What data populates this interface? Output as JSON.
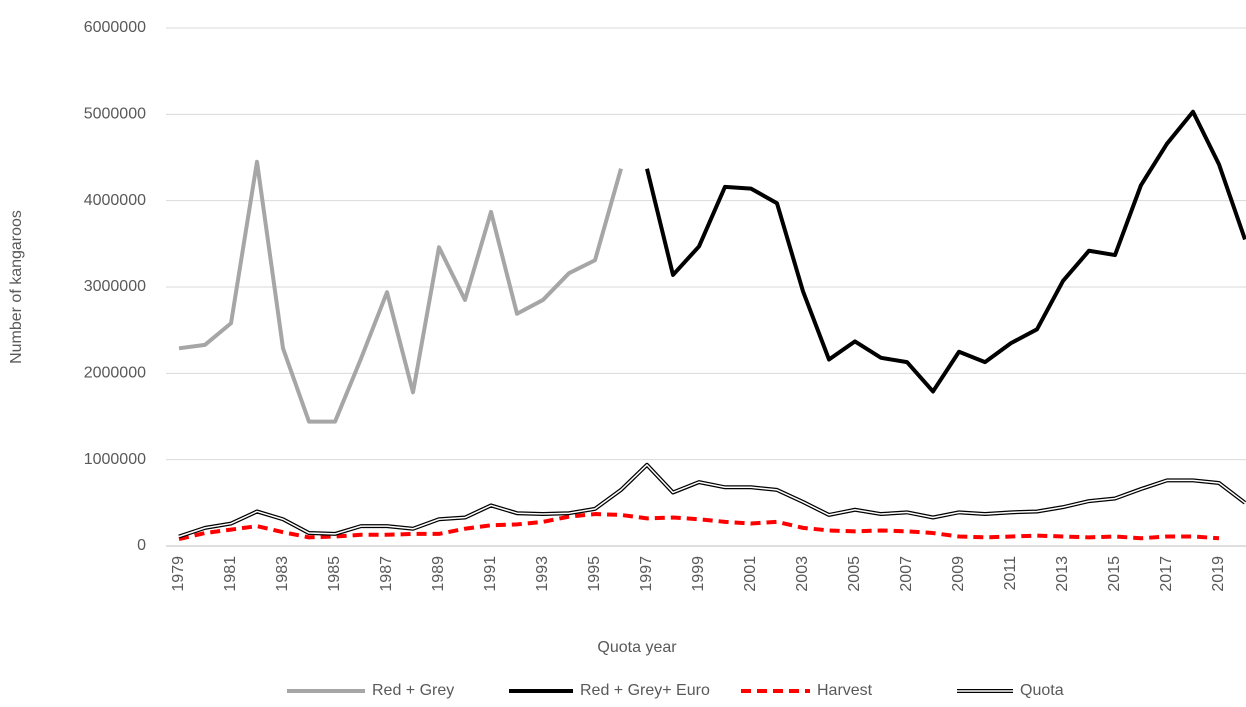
{
  "chart_data": {
    "type": "line",
    "x_label": "Quota year",
    "y_label": "Number of kangaroos",
    "categories": [
      "1979",
      null,
      "1981",
      null,
      "1983",
      null,
      "1985",
      null,
      "1987",
      null,
      "1989",
      null,
      "1991",
      null,
      "1993",
      null,
      "1995",
      null,
      "1997",
      null,
      "1999",
      null,
      "2001",
      null,
      "2003",
      null,
      "2005",
      null,
      "2007",
      null,
      "2009",
      null,
      "2011",
      null,
      "2013",
      null,
      "2015",
      null,
      "2017",
      null,
      "2019",
      null
    ],
    "series": [
      {
        "name": "Red + Grey",
        "color": "#a6a6a6",
        "line_style": "solid",
        "values": [
          2290000,
          2330000,
          2580000,
          4450000,
          2290000,
          1440000,
          1440000,
          2170000,
          2940000,
          1780000,
          3460000,
          2850000,
          3870000,
          2690000,
          2850000,
          3160000,
          3310000,
          4370000,
          null,
          null,
          null,
          null,
          null,
          null,
          null,
          null,
          null,
          null,
          null,
          null,
          null,
          null,
          null,
          null,
          null,
          null,
          null,
          null,
          null,
          null,
          null,
          null
        ]
      },
      {
        "name": "Red + Grey+ Euro",
        "color": "#000000",
        "line_style": "solid",
        "values": [
          null,
          null,
          null,
          null,
          null,
          null,
          null,
          null,
          null,
          null,
          null,
          null,
          null,
          null,
          null,
          null,
          null,
          null,
          4370000,
          3140000,
          3470000,
          4160000,
          4140000,
          3970000,
          2950000,
          2160000,
          2370000,
          2180000,
          2130000,
          1790000,
          2250000,
          2130000,
          2350000,
          2510000,
          3070000,
          3420000,
          3370000,
          4180000,
          4660000,
          5030000,
          4420000,
          3550000
        ]
      },
      {
        "name": "Harvest",
        "color": "#ff0000",
        "line_style": "dashed",
        "values": [
          80000,
          150000,
          190000,
          230000,
          160000,
          100000,
          110000,
          130000,
          130000,
          140000,
          140000,
          200000,
          240000,
          250000,
          280000,
          340000,
          370000,
          360000,
          320000,
          330000,
          310000,
          280000,
          260000,
          280000,
          210000,
          180000,
          170000,
          180000,
          170000,
          150000,
          110000,
          100000,
          110000,
          120000,
          110000,
          100000,
          110000,
          90000,
          110000,
          110000,
          90000,
          null
        ]
      },
      {
        "name": "Quota",
        "color": "#000000",
        "line_style": "double",
        "values": [
          110000,
          210000,
          260000,
          400000,
          310000,
          150000,
          140000,
          230000,
          230000,
          200000,
          310000,
          330000,
          470000,
          380000,
          370000,
          380000,
          430000,
          650000,
          940000,
          620000,
          740000,
          680000,
          680000,
          650000,
          510000,
          360000,
          420000,
          370000,
          390000,
          330000,
          390000,
          370000,
          390000,
          400000,
          450000,
          520000,
          550000,
          660000,
          760000,
          760000,
          730000,
          500000
        ]
      }
    ],
    "ylim": [
      0,
      6000000
    ],
    "yticks": [
      0,
      1000000,
      2000000,
      3000000,
      4000000,
      5000000,
      6000000
    ],
    "grid": true,
    "legend": "bottom"
  }
}
